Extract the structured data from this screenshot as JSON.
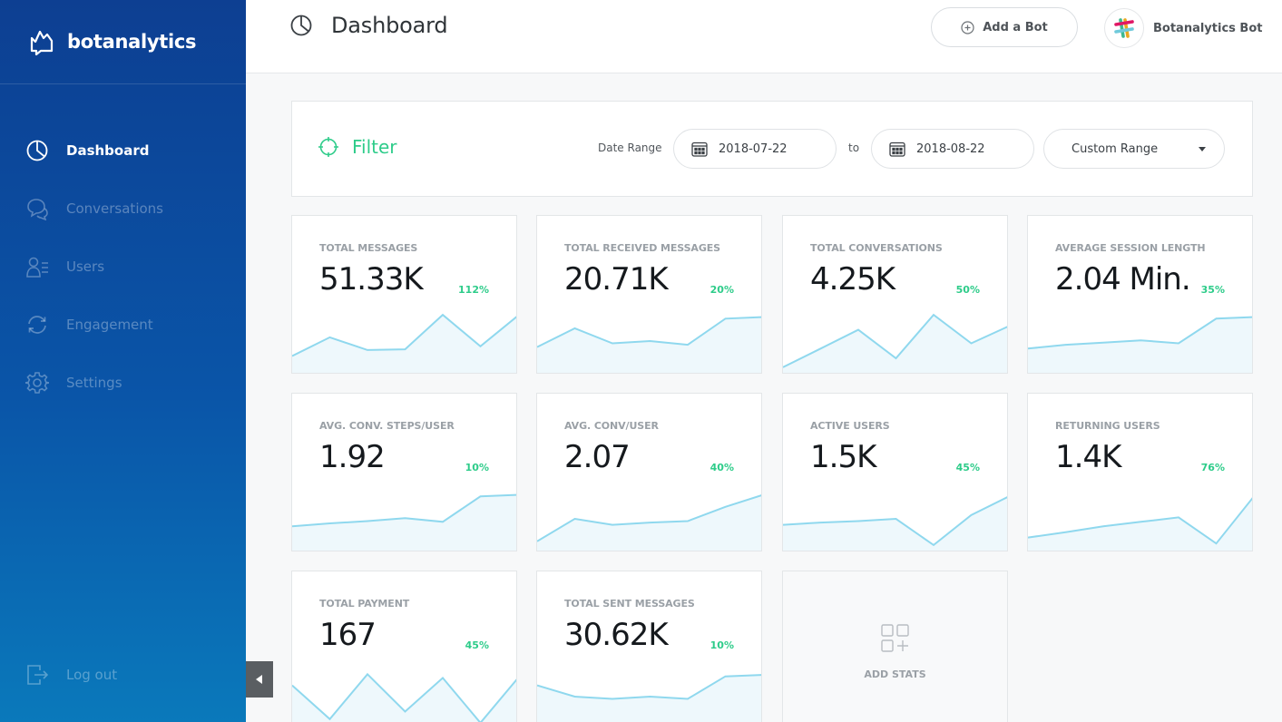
{
  "brand": {
    "name": "botanalytics"
  },
  "sidebar": {
    "items": [
      {
        "label": "Dashboard",
        "icon": "pie-chart-icon",
        "active": true
      },
      {
        "label": "Conversations",
        "icon": "chat-bubbles-icon",
        "active": false
      },
      {
        "label": "Users",
        "icon": "users-list-icon",
        "active": false
      },
      {
        "label": "Engagement",
        "icon": "refresh-icon",
        "active": false
      },
      {
        "label": "Settings",
        "icon": "gear-icon",
        "active": false
      }
    ],
    "logout_label": "Log out"
  },
  "header": {
    "title": "Dashboard",
    "add_bot_label": "Add a Bot",
    "user_name": "Botanalytics Bot"
  },
  "filter": {
    "title": "Filter",
    "date_range_label": "Date Range",
    "start_date": "2018-07-22",
    "to_label": "to",
    "end_date": "2018-08-22",
    "range_option": "Custom Range"
  },
  "colors": {
    "accent_green": "#2ecc8a",
    "sparkline": "#8fd8ee",
    "sidebar_top": "#0d3f92",
    "sidebar_bottom": "#0a79bb"
  },
  "stats": [
    {
      "label": "TOTAL MESSAGES",
      "value": "51.33K",
      "change": "112%",
      "trend": [
        20,
        45,
        28,
        29,
        75,
        33,
        74
      ]
    },
    {
      "label": "TOTAL RECEIVED MESSAGES",
      "value": "20.71K",
      "change": "20%",
      "trend": [
        32,
        57,
        37,
        40,
        35,
        70,
        72
      ]
    },
    {
      "label": "TOTAL CONVERSATIONS",
      "value": "4.25K",
      "change": "50%",
      "trend": [
        5,
        30,
        55,
        17,
        75,
        37,
        60
      ]
    },
    {
      "label": "AVERAGE SESSION LENGTH",
      "value": "2.04 Min.",
      "change": "35%",
      "trend": [
        30,
        35,
        38,
        41,
        37,
        70,
        72
      ]
    },
    {
      "label": "AVG. CONV. STEPS/USER",
      "value": "1.92",
      "change": "10%",
      "trend": [
        30,
        34,
        37,
        41,
        36,
        70,
        72
      ]
    },
    {
      "label": "AVG. CONV/USER",
      "value": "2.07",
      "change": "40%",
      "trend": [
        10,
        40,
        32,
        35,
        37,
        56,
        72
      ]
    },
    {
      "label": "ACTIVE USERS",
      "value": "1.5K",
      "change": "45%",
      "trend": [
        32,
        35,
        37,
        40,
        5,
        45,
        70
      ]
    },
    {
      "label": "RETURNING USERS",
      "value": "1.4K",
      "change": "76%",
      "trend": [
        15,
        22,
        30,
        36,
        42,
        7,
        70
      ]
    },
    {
      "label": "TOTAL PAYMENT",
      "value": "167",
      "change": "45%",
      "trend": [
        55,
        10,
        70,
        20,
        65,
        5,
        65
      ]
    },
    {
      "label": "TOTAL SENT MESSAGES",
      "value": "30.62K",
      "change": "10%",
      "trend": [
        55,
        40,
        37,
        40,
        37,
        67,
        69
      ]
    }
  ],
  "add_stats_label": "ADD STATS"
}
